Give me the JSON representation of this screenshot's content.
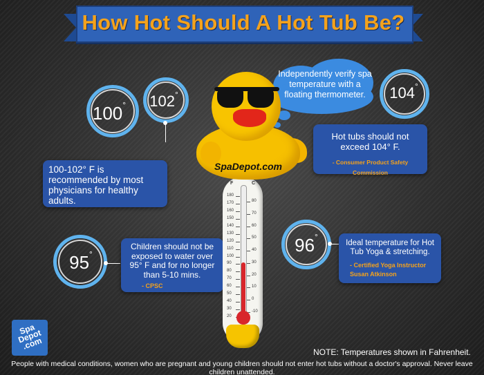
{
  "title": "How Hot Should A Hot Tub Be?",
  "temps": {
    "t100": "100",
    "t102": "102",
    "t104": "104",
    "t95": "95",
    "t96": "96",
    "degree": "°"
  },
  "cloud_text": "Independently verify spa temperature with a floating thermometer.",
  "duck_brand": "SpaDepot.com",
  "boxes": {
    "b102": "100-102° F is recommended by most physicians for healthy adults.",
    "b104_text": "Hot tubs should not exceed 104° F.",
    "b104_source": "- Consumer Product Safety Commission",
    "b95_text": "Children should not be exposed to water over 95° F and for no longer than 5-10 mins.",
    "b95_source": "- CPSC",
    "b96_text": "Ideal temperature for Hot Tub Yoga & stretching.",
    "b96_source": "- Certified Yoga Instructor Susan Atkinson"
  },
  "thermometer": {
    "f_label": "F",
    "c_label": "C",
    "f_ticks": [
      "180",
      "170",
      "160",
      "150",
      "140",
      "130",
      "120",
      "110",
      "100",
      "90",
      "80",
      "70",
      "60",
      "50",
      "40",
      "30",
      "20"
    ],
    "c_ticks": [
      "80",
      "70",
      "60",
      "50",
      "40",
      "30",
      "20",
      "10",
      "0",
      "-10"
    ]
  },
  "logo_text": "Spa Depot .com",
  "note": "NOTE: Temperatures shown in Fahrenheit.",
  "disclaimer": "People with medical conditions, women who are pregnant and young children should not enter hot tubs without a doctor's approval. Never leave children unattended."
}
